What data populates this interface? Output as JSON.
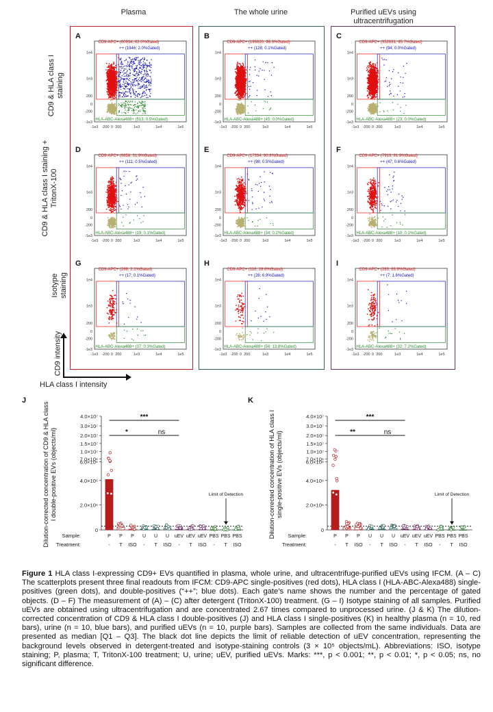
{
  "columns": [
    "Plasma",
    "The whole urine",
    "Purified uEVs using ultracentrifugation"
  ],
  "rows": [
    "CD9 & HLA class I staining",
    "CD9 & HLA class I staining + TritonX-100",
    "Isotype staining"
  ],
  "axes": {
    "y_intensity": "CD9 intensity",
    "x_intensity": "HLA class I intensity",
    "scatter_y_ticks": [
      "1e4",
      "1e3",
      "200",
      "0",
      "-200",
      "-1e3"
    ],
    "scatter_x_ticks": [
      "-1e3",
      "-200",
      "0",
      "200",
      "1e3",
      "1e4",
      "1e5"
    ]
  },
  "scatter_panels": [
    {
      "letter": "A",
      "cd9": "CD9-APC+ (60934; 62.0%Gated)",
      "dp": "++ (1946; 2.0%Gated)",
      "hla": "HLA-ABC-Alexa488+ (513; 0.5%Gated)"
    },
    {
      "letter": "B",
      "cd9": "CD9-APC+ (193620; 96.3%Gated)",
      "dp": "++ (128; 0.1%Gated)",
      "hla": "HLA-ABC-Alexa488+ (45; 0.0%Gated)"
    },
    {
      "letter": "C",
      "cd9": "CD9-APC+ (352031; 95.7%Gated)",
      "dp": "++ (94; 0.0%Gated)",
      "hla": "HLA-ABC-Alexa488+ (23; 0.0%Gated)"
    },
    {
      "letter": "D",
      "cd9": "CD9-APC+ (6858; 31.9%Gated)",
      "dp": "++ (111; 0.5%Gated)",
      "hla": "HLA-ABC-Alexa488+ (19; 0.1%Gated)"
    },
    {
      "letter": "E",
      "cd9": "CD9-APC+ (17334; 90.8%Gated)",
      "dp": "++ (98; 0.5%Gated)",
      "hla": "HLA-ABC-Alexa488+ (34; 0.2%Gated)"
    },
    {
      "letter": "F",
      "cd9": "CD9-APC+ (7919; 91.9%Gated)",
      "dp": "++ (47; 0.6%Gated)",
      "hla": "HLA-ABC-Alexa488+ (10; 0.1%Gated)"
    },
    {
      "letter": "G",
      "cd9": "CD9-APC+ (269; 2.1%Gated)",
      "dp": "++ (17; 0.1%Gated)",
      "hla": "HLA-ABC-Alexa488+ (37; 0.3%Gated)"
    },
    {
      "letter": "H",
      "cd9": "CD9-APC+ (116; 28.6%Gated)",
      "dp": "++ (28; 6.9%Gated)",
      "hla": "HLA-ABC-Alexa488+ (56; 13.8%Gated)"
    },
    {
      "letter": "I",
      "cd9": "CD9-APC+ (283; 63.9%Gated)",
      "dp": "++ (7; 1.6%Gated)",
      "hla": "HLA-ABC-Alexa488+ (32; 7.2%Gated)"
    }
  ],
  "colors": {
    "plasma": "#b71c1c",
    "urine": "#2e5e5a",
    "uev": "#6b2d63",
    "cd9": "#e01010",
    "double": "#1010c0",
    "hla": "#2a8a2a",
    "neg": "#b8b070"
  },
  "chart_data": [
    {
      "type": "bar",
      "letter": "J",
      "ylabel": "Dilution-corrected concentration of CD9 & HLA class I double-positive EVs (objects/ml)",
      "y_ticks": [
        "4.0×10⁷",
        "3.0×10⁷",
        "2.0×10⁷",
        "1.5×10⁷",
        "1.0×10⁷",
        "7.0×10⁶",
        "6.0×10⁶",
        "4.0×10⁶",
        "2.0×10⁶",
        "0"
      ],
      "sample_label": "Sample:",
      "treatment_label": "Treatment:",
      "samples": [
        "P",
        "P",
        "P",
        "U",
        "U",
        "U",
        "uEV",
        "uEV",
        "uEV",
        "PBS",
        "PBS",
        "PBS"
      ],
      "treatments": [
        "-",
        "T",
        "ISO",
        "-",
        "T",
        "ISO",
        "-",
        "T",
        "ISO",
        "-",
        "T",
        "ISO"
      ],
      "medians": [
        4100000,
        200000,
        50000,
        60000,
        50000,
        80000,
        50000,
        40000,
        40000,
        0,
        0,
        0
      ],
      "sig": [
        {
          "label": "***",
          "from": "P",
          "to": "uEV"
        },
        {
          "label": "*",
          "from": "P",
          "to": "U"
        },
        {
          "label": "ns",
          "from": "U",
          "to": "uEV"
        }
      ],
      "lod_label": "Limit of Detection",
      "lod": 300000
    },
    {
      "type": "bar",
      "letter": "K",
      "ylabel": "Dilution-corrected concentration of HLA class I single-positive EVs (objects/ml)",
      "y_ticks": [
        "4.0×10⁷",
        "3.0×10⁷",
        "2.0×10⁷",
        "1.5×10⁷",
        "1.0×10⁷",
        "7.0×10⁶",
        "6.0×10⁶",
        "4.0×10⁶",
        "2.0×10⁶",
        "0"
      ],
      "sample_label": "Sample:",
      "treatment_label": "Treatment:",
      "samples": [
        "P",
        "P",
        "P",
        "U",
        "U",
        "U",
        "uEV",
        "uEV",
        "uEV",
        "PBS",
        "PBS",
        "PBS"
      ],
      "treatments": [
        "-",
        "T",
        "ISO",
        "-",
        "T",
        "ISO",
        "-",
        "T",
        "ISO",
        "-",
        "T",
        "ISO"
      ],
      "medians": [
        3200000,
        250000,
        200000,
        60000,
        50000,
        100000,
        60000,
        40000,
        40000,
        0,
        0,
        0
      ],
      "sig": [
        {
          "label": "***",
          "from": "P",
          "to": "uEV"
        },
        {
          "label": "**",
          "from": "P",
          "to": "U"
        },
        {
          "label": "ns",
          "from": "U",
          "to": "uEV"
        }
      ],
      "lod_label": "Limit of Detection",
      "lod": 300000
    }
  ],
  "caption": {
    "title": "Figure 1",
    "text": "HLA class I-expressing CD9+ EVs quantified in plasma, whole urine, and ultracentrifuge-purified uEVs using IFCM. (A – C) The scatterplots present three final readouts from IFCM: CD9-APC single-positives (red dots), HLA class I (HLA-ABC-Alexa488) single-positives (green dots), and double-positives (“++”; blue dots). Each gate’s name shows the number and the percentage of gated objects. (D – F) The measurement of (A) – (C) after detergent (TritonX-100) treatment. (G – I) Isotype staining of all samples. Purified uEVs are obtained using ultracentrifugation and are concentrated 2.67 times compared to unprocessed urine. (J & K) The dilution-corrected concentration of CD9 & HLA class I double-positives (J) and HLA class I single-positives (K) in healthy plasma (n = 10, red bars), urine (n = 10, blue bars), and purified uEVs (n = 10, purple bars). Samples are collected from the same individuals. Data are presented as median [Q1 – Q3]. The black dot line depicts the limit of reliable detection of uEV concentration, representing the background levels observed in detergent-treated and isotype-staining controls (3 × 10⁵ objects/mL). Abbreviations: ISO, isotype staining; P, plasma; T, TritonX-100 treatment; U, urine; uEV, purified uEVs. Marks: ***, p < 0.001; **, p < 0.01; *, p < 0.05; ns, no significant difference."
  }
}
